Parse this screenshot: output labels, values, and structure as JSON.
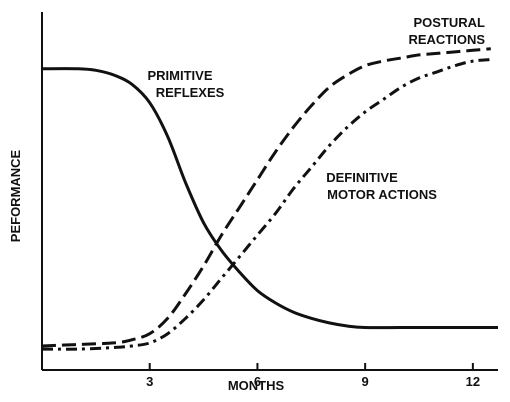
{
  "chart_data": {
    "type": "line",
    "xlabel": "MONTHS",
    "ylabel": "PEFORMANCE",
    "xlim": [
      0,
      12.7
    ],
    "ylim": [
      0,
      100
    ],
    "x_ticks": [
      3,
      6,
      9,
      12
    ],
    "y_ticks": [],
    "grid": false,
    "legend": "none",
    "series": [
      {
        "name": "PRIMITIVE REFLEXES",
        "style": "solid",
        "x": [
          0,
          1,
          1.5,
          2,
          2.5,
          3,
          3.5,
          4,
          4.5,
          5,
          5.5,
          6,
          6.5,
          7,
          7.5,
          8,
          8.5,
          9,
          10,
          11,
          12,
          12.7
        ],
        "y": [
          90,
          90,
          89.5,
          88,
          85,
          79,
          68,
          53,
          40,
          31,
          24,
          18,
          14,
          11,
          9,
          7.5,
          6.5,
          6,
          6,
          6,
          6,
          6
        ]
      },
      {
        "name": "POSTURAL REACTIONS",
        "style": "dashed",
        "x": [
          0,
          1,
          2,
          2.5,
          3,
          3.5,
          4,
          4.5,
          5,
          5.5,
          6,
          6.5,
          7,
          7.5,
          8,
          8.5,
          9,
          9.5,
          10,
          10.5,
          11,
          11.5,
          12,
          12.5
        ],
        "y": [
          0,
          0.5,
          1,
          2,
          4,
          9,
          17,
          26,
          36,
          45,
          54,
          63,
          71,
          78,
          84,
          88,
          91,
          92.5,
          93.5,
          94.5,
          95,
          95.5,
          96,
          96.5
        ]
      },
      {
        "name": "DEFINITIVE MOTOR ACTIONS",
        "style": "dashdot",
        "x": [
          0,
          1,
          2,
          2.5,
          3,
          3.5,
          4,
          4.5,
          5,
          5.5,
          6,
          6.5,
          7,
          7.5,
          8,
          8.5,
          9,
          9.5,
          10,
          10.5,
          11,
          11.5,
          12,
          12.5
        ],
        "y": [
          -1,
          -1,
          -0.5,
          0,
          1,
          4,
          9,
          15,
          22,
          29,
          36,
          43,
          51,
          58,
          65,
          71,
          76,
          80,
          84,
          87,
          89,
          91,
          92.5,
          93
        ]
      }
    ],
    "annotations": {
      "primitive": [
        "PRIMITIVE",
        "REFLEXES"
      ],
      "postural": [
        "POSTURAL",
        "REACTIONS"
      ],
      "definitive": [
        "DEFINITIVE",
        "MOTOR ACTIONS"
      ]
    },
    "colors": {
      "line": "#111111",
      "axis": "#111111",
      "background": "#ffffff"
    }
  }
}
